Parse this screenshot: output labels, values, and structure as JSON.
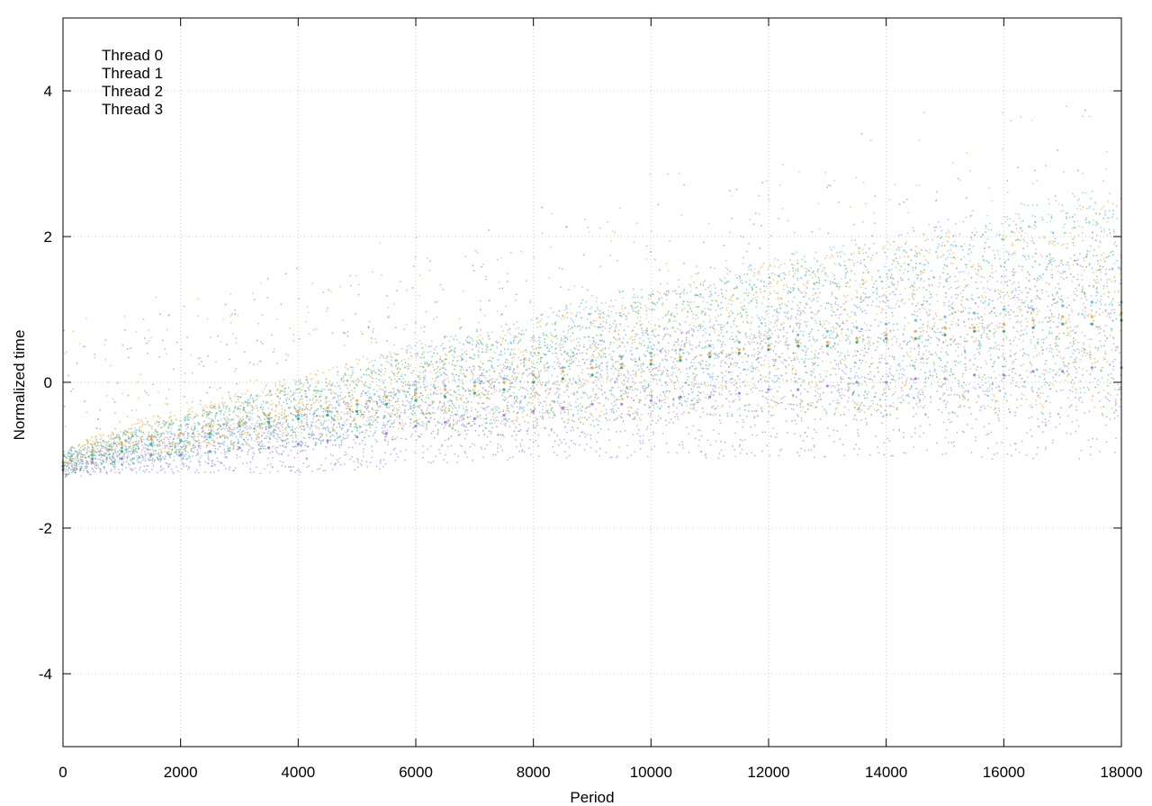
{
  "chart_data": {
    "type": "scatter",
    "title": "",
    "xlabel": "Period",
    "ylabel": "Normalized time",
    "xlim": [
      0,
      18000
    ],
    "ylim": [
      -5,
      5
    ],
    "xticks": [
      0,
      2000,
      4000,
      6000,
      8000,
      10000,
      12000,
      14000,
      16000,
      18000
    ],
    "yticks": [
      4,
      2,
      0,
      -2,
      -4
    ],
    "xtick_labels": [
      "0",
      "2000",
      "4000",
      "6000",
      "8000",
      "10000",
      "12000",
      "14000",
      "16000",
      "18000"
    ],
    "ytick_labels": [
      "4",
      "2",
      "0",
      "-2",
      "-4"
    ],
    "grid": true,
    "legend_position": "top-left",
    "series": [
      {
        "name": "Thread 0",
        "color": "#9b72d8",
        "x": [
          0,
          500,
          1000,
          1500,
          2000,
          2500,
          3000,
          3500,
          4000,
          4500,
          5000,
          5500,
          6000,
          6500,
          7000,
          7500,
          8000,
          8500,
          9000,
          9500,
          10000,
          10500,
          11000,
          11500,
          12000,
          12500,
          13000,
          13500,
          14000,
          14500,
          15000,
          15500,
          16000,
          16500,
          17000,
          17500,
          18000
        ],
        "y": [
          -1.2,
          -1.1,
          -1.05,
          -1.0,
          -1.0,
          -0.95,
          -0.9,
          -0.9,
          -0.85,
          -0.8,
          -0.75,
          -0.7,
          -0.6,
          -0.55,
          -0.5,
          -0.45,
          -0.4,
          -0.35,
          -0.3,
          -0.3,
          -0.25,
          -0.2,
          -0.2,
          -0.15,
          -0.1,
          -0.1,
          -0.05,
          0.0,
          0.0,
          0.05,
          0.05,
          0.1,
          0.1,
          0.15,
          0.15,
          0.2,
          0.2
        ]
      },
      {
        "name": "Thread 1",
        "color": "#2a9d5c",
        "x": [
          0,
          500,
          1000,
          1500,
          2000,
          2500,
          3000,
          3500,
          4000,
          4500,
          5000,
          5500,
          6000,
          6500,
          7000,
          7500,
          8000,
          8500,
          9000,
          9500,
          10000,
          10500,
          11000,
          11500,
          12000,
          12500,
          13000,
          13500,
          14000,
          14500,
          15000,
          15500,
          16000,
          16500,
          17000,
          17500,
          18000
        ],
        "y": [
          -1.15,
          -1.05,
          -0.95,
          -0.85,
          -0.8,
          -0.7,
          -0.6,
          -0.55,
          -0.5,
          -0.45,
          -0.4,
          -0.3,
          -0.25,
          -0.2,
          -0.15,
          -0.1,
          0.0,
          0.05,
          0.1,
          0.2,
          0.25,
          0.3,
          0.35,
          0.4,
          0.45,
          0.5,
          0.5,
          0.55,
          0.6,
          0.6,
          0.65,
          0.7,
          0.7,
          0.75,
          0.8,
          0.8,
          0.85
        ]
      },
      {
        "name": "Thread 2",
        "color": "#56b4e9",
        "x": [
          0,
          500,
          1000,
          1500,
          2000,
          2500,
          3000,
          3500,
          4000,
          4500,
          5000,
          5500,
          6000,
          6500,
          7000,
          7500,
          8000,
          8500,
          9000,
          9500,
          10000,
          10500,
          11000,
          11500,
          12000,
          12500,
          13000,
          13500,
          14000,
          14500,
          15000,
          15500,
          16000,
          16500,
          17000,
          17500,
          18000
        ],
        "y": [
          -1.1,
          -1.0,
          -0.9,
          -0.85,
          -0.8,
          -0.75,
          -0.6,
          -0.5,
          -0.45,
          -0.4,
          -0.3,
          -0.2,
          -0.1,
          -0.05,
          0.0,
          0.05,
          0.1,
          0.2,
          0.3,
          0.35,
          0.4,
          0.45,
          0.5,
          0.55,
          0.6,
          0.65,
          0.7,
          0.75,
          0.8,
          0.85,
          0.9,
          0.95,
          1.0,
          1.0,
          1.05,
          1.1,
          1.1
        ]
      },
      {
        "name": "Thread 3",
        "color": "#e6a830",
        "x": [
          0,
          500,
          1000,
          1500,
          2000,
          2500,
          3000,
          3500,
          4000,
          4500,
          5000,
          5500,
          6000,
          6500,
          7000,
          7500,
          8000,
          8500,
          9000,
          9500,
          10000,
          10500,
          11000,
          11500,
          12000,
          12500,
          13000,
          13500,
          14000,
          14500,
          15000,
          15500,
          16000,
          16500,
          17000,
          17500,
          18000
        ],
        "y": [
          -1.1,
          -0.95,
          -0.85,
          -0.75,
          -0.7,
          -0.6,
          -0.55,
          -0.45,
          -0.4,
          -0.35,
          -0.25,
          -0.2,
          -0.15,
          -0.1,
          -0.05,
          0.0,
          0.1,
          0.15,
          0.2,
          0.25,
          0.3,
          0.35,
          0.4,
          0.45,
          0.5,
          0.55,
          0.55,
          0.6,
          0.65,
          0.7,
          0.75,
          0.75,
          0.8,
          0.85,
          0.9,
          0.9,
          0.95
        ]
      }
    ]
  }
}
